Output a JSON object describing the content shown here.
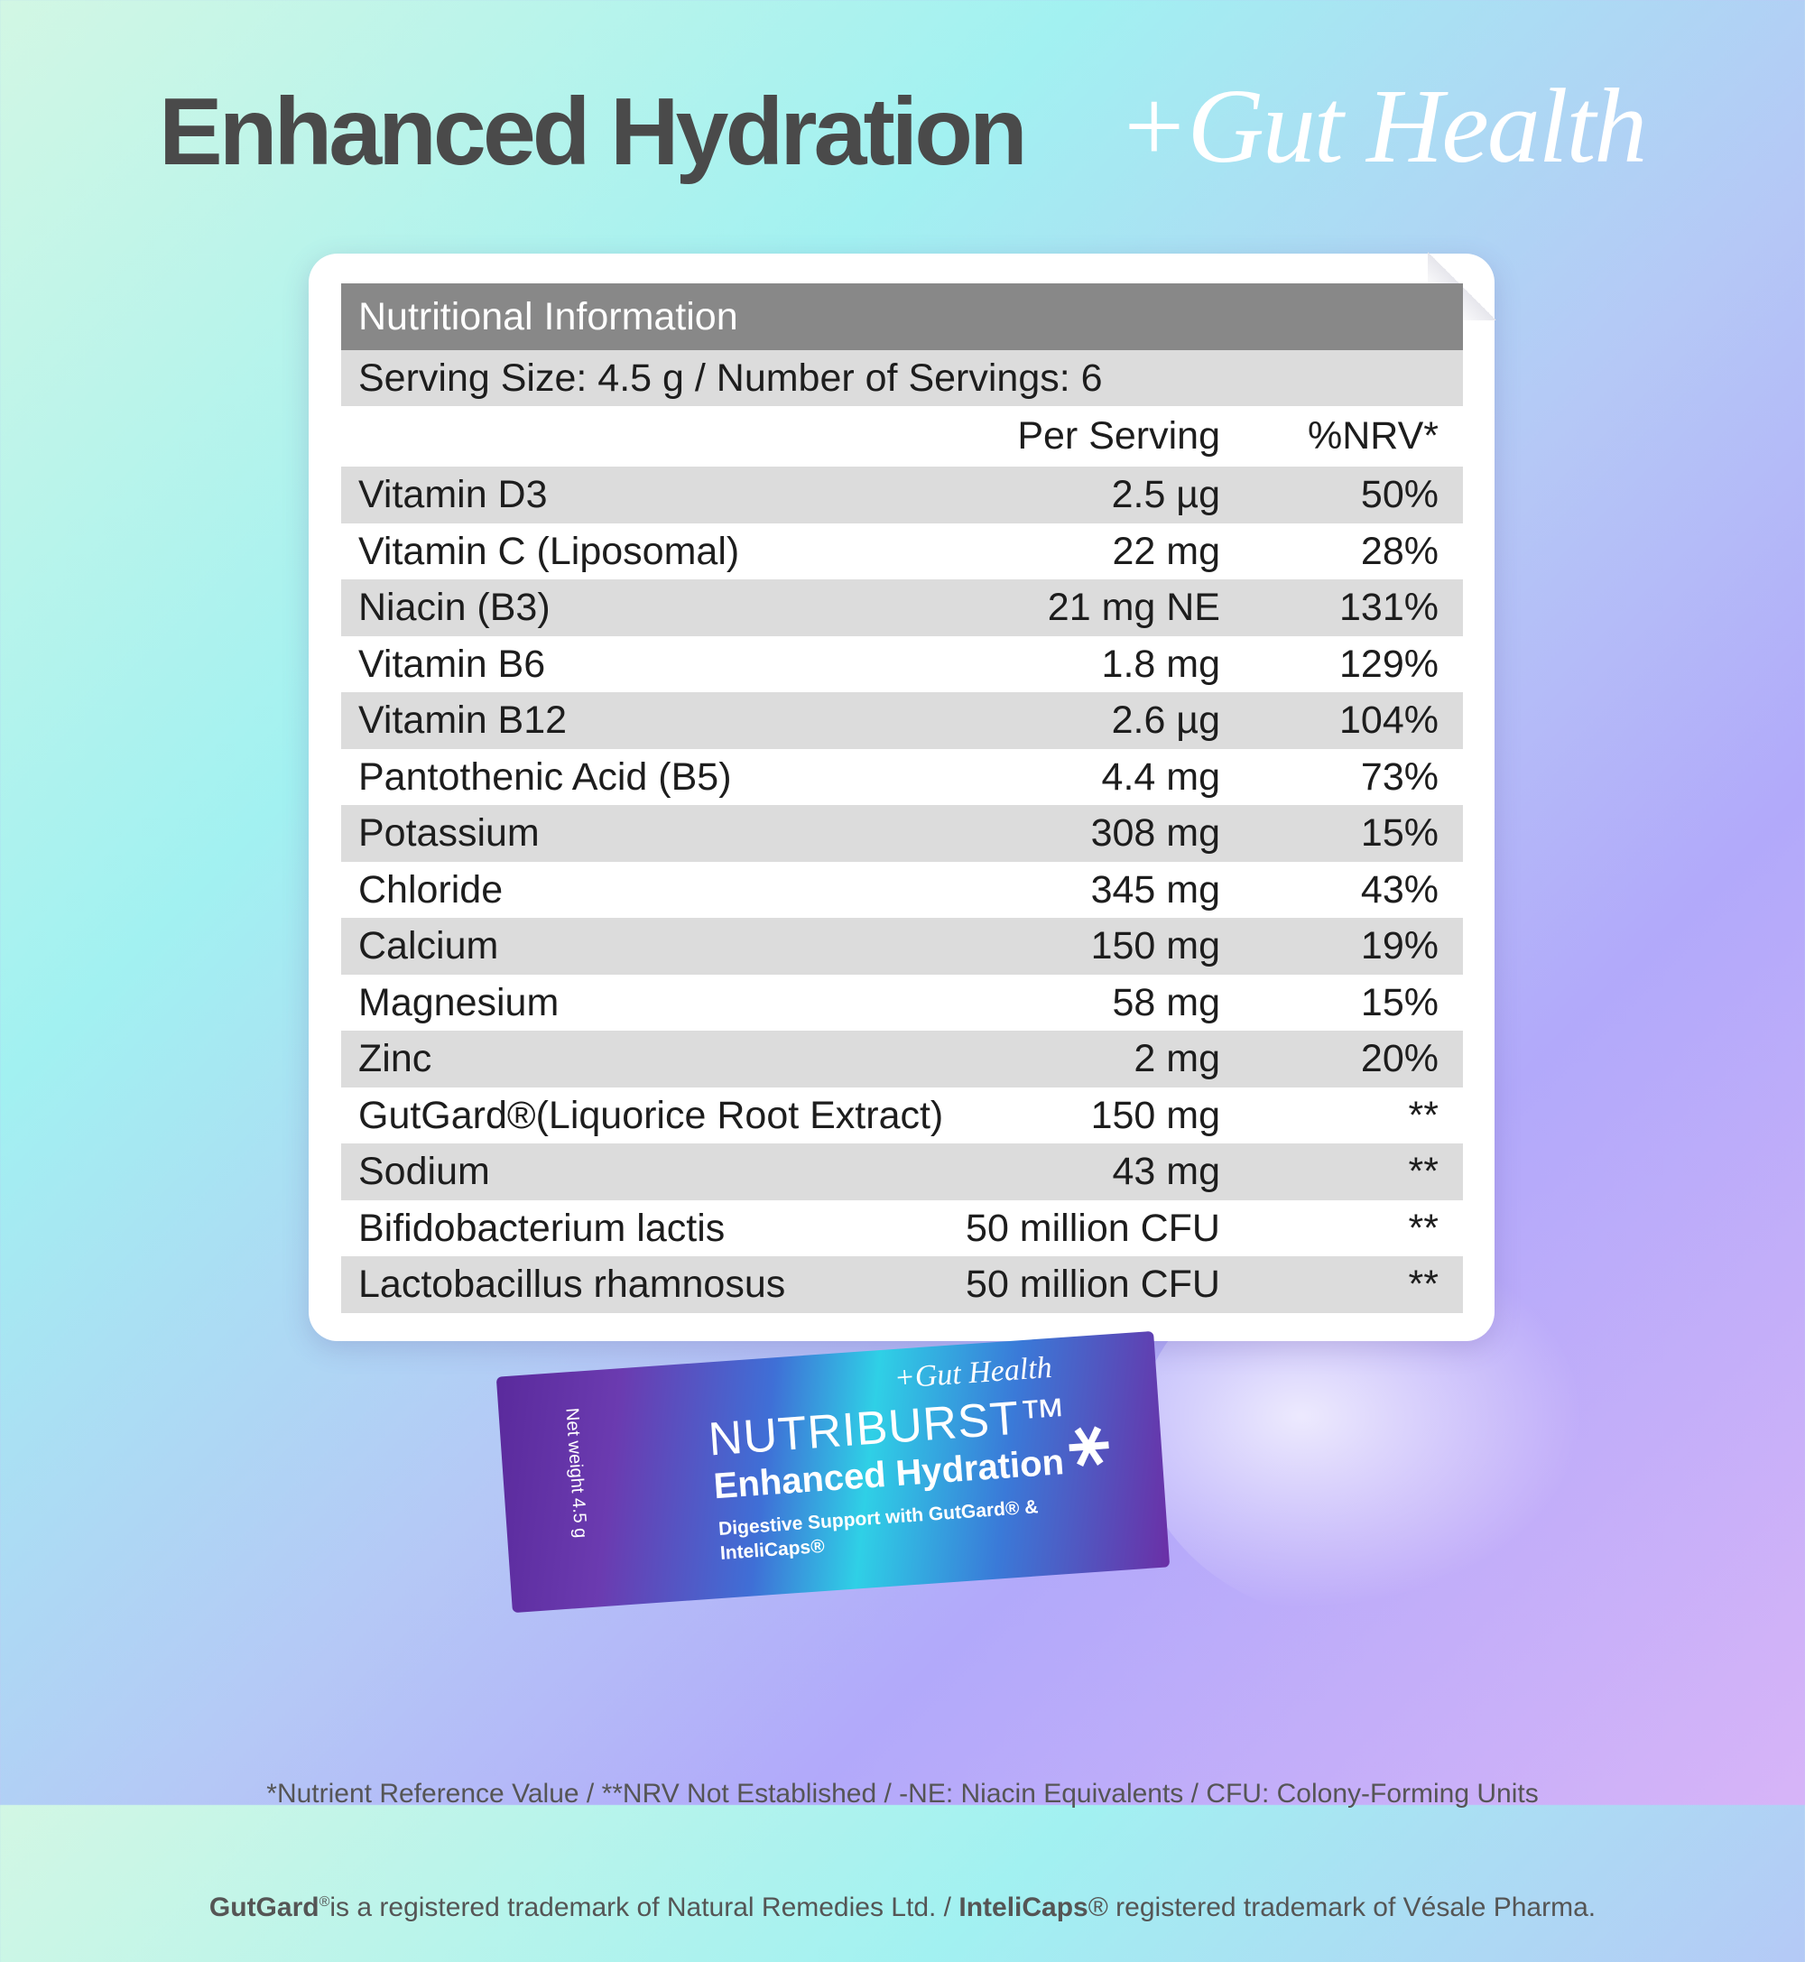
{
  "header": {
    "title": "Enhanced Hydration",
    "script_title": "+Gut Health"
  },
  "table": {
    "title": "Nutritional Information",
    "serving": "Serving Size: 4.5 g / Number of Servings: 6",
    "columns": [
      "Per Serving",
      "%NRV*"
    ],
    "rows": [
      [
        "Vitamin D3",
        "2.5 µg",
        "50%"
      ],
      [
        "Vitamin C (Liposomal)",
        "22 mg",
        "28%"
      ],
      [
        "Niacin (B3)",
        "21 mg NE",
        "131%"
      ],
      [
        "Vitamin B6",
        "1.8 mg",
        "129%"
      ],
      [
        "Vitamin B12",
        "2.6 µg",
        "104%"
      ],
      [
        "Pantothenic Acid (B5)",
        "4.4 mg",
        "73%"
      ],
      [
        "Potassium",
        "308 mg",
        "15%"
      ],
      [
        "Chloride",
        "345 mg",
        "43%"
      ],
      [
        "Calcium",
        "150 mg",
        "19%"
      ],
      [
        "Magnesium",
        "58 mg",
        "15%"
      ],
      [
        "Zinc",
        "2 mg",
        "20%"
      ],
      [
        "GutGard®(Liquorice Root Extract)",
        "150 mg",
        "**"
      ],
      [
        "Sodium",
        "43 mg",
        "**"
      ],
      [
        "Bifidobacterium lactis",
        "50 million CFU",
        "**"
      ],
      [
        "Lactobacillus rhamnosus",
        "50 million CFU",
        "**"
      ]
    ]
  },
  "sachet": {
    "tagline": "+Gut Health",
    "brand": "NUTRIBURST™",
    "product": "Enhanced Hydration",
    "description": "Digestive Support with GutGard® & InteliCaps®",
    "net_weight": "Net weight 4.5 g"
  },
  "footnotes": {
    "line1": "*Nutrient Reference Value / **NRV Not Established / -NE: Niacin Equivalents / CFU: Colony-Forming Units",
    "line2": [
      "GutGard",
      "®",
      "is a registered trademark of Natural Remedies Ltd. / ",
      "InteliCaps",
      "®",
      " registered trademark of Vésale Pharma."
    ]
  }
}
